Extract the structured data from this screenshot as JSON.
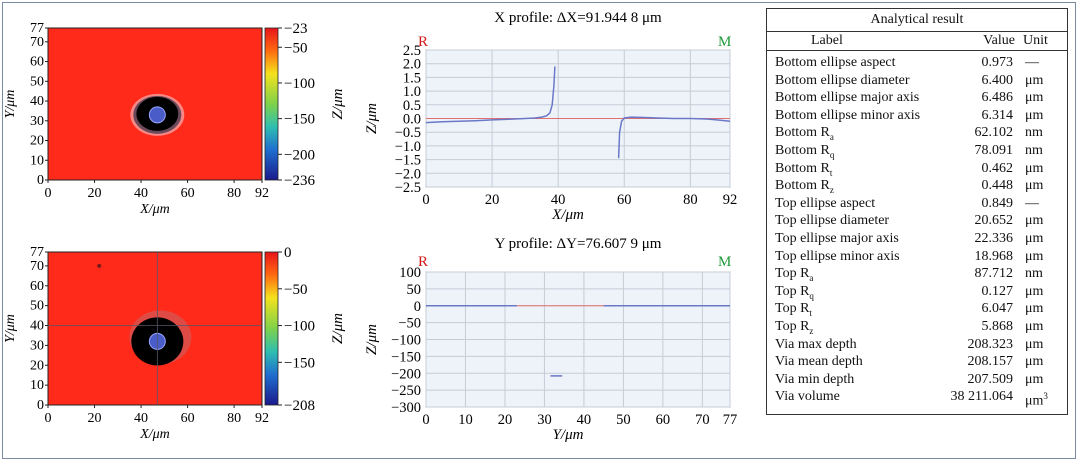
{
  "chart_data": [
    {
      "type": "heatmap",
      "name": "top-map",
      "xlabel": "X/μm",
      "ylabel": "Y/μm",
      "colorbar_label": "Z/μm",
      "x_ticks": [
        0,
        20,
        40,
        60,
        80,
        92
      ],
      "y_ticks": [
        0,
        10,
        20,
        30,
        40,
        50,
        60,
        70,
        77
      ],
      "xlim": [
        0,
        92
      ],
      "ylim": [
        0,
        77
      ],
      "colorbar_ticks": [
        -23,
        -50,
        -100,
        -150,
        -200,
        -236
      ],
      "zlim": [
        -236,
        -23
      ],
      "via_center": [
        47,
        33
      ],
      "colors": {
        "surface": "#ff2a1a",
        "via": "#000000",
        "core": "#4a5cc8"
      }
    },
    {
      "type": "heatmap",
      "name": "bottom-map",
      "xlabel": "X/μm",
      "ylabel": "Y/μm",
      "colorbar_label": "Z/μm",
      "x_ticks": [
        0,
        20,
        40,
        60,
        80,
        92
      ],
      "y_ticks": [
        0,
        10,
        20,
        30,
        40,
        50,
        60,
        70,
        77
      ],
      "xlim": [
        0,
        92
      ],
      "ylim": [
        0,
        77
      ],
      "colorbar_ticks": [
        0,
        -50,
        -100,
        -150,
        -208
      ],
      "zlim": [
        -208,
        0
      ],
      "via_center": [
        47,
        32
      ],
      "crosshair": [
        47,
        40
      ],
      "colors": {
        "surface": "#ff2a1a",
        "via": "#000000",
        "core": "#4a5cc8"
      }
    },
    {
      "type": "line",
      "name": "x-profile",
      "title": "X profile: ΔX=91.944 8 μm",
      "xlabel": "X/μm",
      "ylabel": "Z/μm",
      "corner_left": "R",
      "corner_right": "M",
      "xlim": [
        0,
        92
      ],
      "ylim": [
        -2.5,
        2.5
      ],
      "x_ticks": [
        0,
        20,
        40,
        60,
        80,
        92
      ],
      "y_ticks": [
        2.5,
        2.0,
        1.5,
        1.0,
        0.5,
        0.0,
        -0.5,
        -1.0,
        -1.5,
        -2.0,
        -2.5
      ],
      "y_tick_labels": [
        "2.5",
        "2.0",
        "1.5",
        "1.0",
        "0.5",
        "0.0",
        "−0.5",
        "−1.0",
        "−1.5",
        "−2.0",
        "−2.5"
      ],
      "grid": true,
      "reference_y": 0,
      "series": [
        {
          "x": [
            0,
            5,
            10,
            15,
            20,
            25,
            30,
            33,
            35,
            36.5,
            37.5,
            38.2,
            38.7,
            39
          ],
          "y": [
            -0.15,
            -0.12,
            -0.1,
            -0.08,
            -0.05,
            -0.03,
            0.0,
            0.02,
            0.05,
            0.1,
            0.2,
            0.5,
            1.2,
            1.9
          ]
        },
        {
          "x": [
            58.3,
            58.6,
            59.2,
            60,
            62,
            65,
            70,
            75,
            80,
            85,
            88,
            92
          ],
          "y": [
            -1.45,
            -0.5,
            -0.1,
            0.02,
            0.05,
            0.04,
            0.02,
            0.0,
            0.0,
            -0.02,
            -0.05,
            -0.1
          ]
        }
      ]
    },
    {
      "type": "line",
      "name": "y-profile",
      "title": "Y profile: ΔY=76.607 9 μm",
      "xlabel": "Y/μm",
      "ylabel": "Z/μm",
      "corner_left": "R",
      "corner_right": "M",
      "xlim": [
        0,
        77
      ],
      "ylim": [
        -300,
        100
      ],
      "x_ticks": [
        0,
        10,
        20,
        30,
        40,
        50,
        60,
        70,
        77
      ],
      "y_ticks": [
        100,
        50,
        0,
        -50,
        -100,
        -150,
        -200,
        -250,
        -300
      ],
      "y_tick_labels": [
        "100",
        "50",
        "0",
        "−50",
        "−100",
        "−150",
        "−200",
        "−250",
        "−300"
      ],
      "grid": true,
      "reference_y": 0,
      "series": [
        {
          "x": [
            0,
            5,
            10,
            15,
            20,
            23
          ],
          "y": [
            0,
            0,
            0,
            0,
            0,
            0
          ]
        },
        {
          "x": [
            31.5,
            34.5
          ],
          "y": [
            -208,
            -208
          ]
        },
        {
          "x": [
            45,
            50,
            55,
            60,
            65,
            70,
            77
          ],
          "y": [
            0,
            0,
            0,
            0,
            0,
            0,
            0
          ]
        }
      ]
    }
  ],
  "table": {
    "title": "Analytical result",
    "headers": {
      "label": "Label",
      "value": "Value",
      "unit": "Unit"
    },
    "rows": [
      {
        "label": "Bottom ellipse aspect",
        "value": "0.973",
        "unit": "—"
      },
      {
        "label": "Bottom ellipse diameter",
        "value": "6.400",
        "unit": "μm"
      },
      {
        "label": "Bottom ellipse major axis",
        "value": "6.486",
        "unit": "μm"
      },
      {
        "label": "Bottom ellipse minor axis",
        "value": "6.314",
        "unit": "μm"
      },
      {
        "label": "Bottom R",
        "sub": "a",
        "value": "62.102",
        "unit": "nm"
      },
      {
        "label": "Bottom R",
        "sub": "q",
        "value": "78.091",
        "unit": "nm"
      },
      {
        "label": "Bottom R",
        "sub": "t",
        "value": "0.462",
        "unit": "μm"
      },
      {
        "label": "Bottom R",
        "sub": "z",
        "value": "0.448",
        "unit": "μm"
      },
      {
        "label": "Top ellipse aspect",
        "value": "0.849",
        "unit": "—"
      },
      {
        "label": "Top ellipse diameter",
        "value": "20.652",
        "unit": "μm"
      },
      {
        "label": "Top ellipse major axis",
        "value": "22.336",
        "unit": "μm"
      },
      {
        "label": "Top ellipse minor axis",
        "value": "18.968",
        "unit": "μm"
      },
      {
        "label": "Top R",
        "sub": "a",
        "value": "87.712",
        "unit": "nm"
      },
      {
        "label": "Top R",
        "sub": "q",
        "value": "0.127",
        "unit": "μm"
      },
      {
        "label": "Top R",
        "sub": "t",
        "value": "6.047",
        "unit": "μm"
      },
      {
        "label": "Top R",
        "sub": "z",
        "value": "5.868",
        "unit": "μm"
      },
      {
        "label": "Via max depth",
        "value": "208.323",
        "unit": "μm"
      },
      {
        "label": "Via mean depth",
        "value": "208.157",
        "unit": "μm"
      },
      {
        "label": "Via min depth",
        "value": "207.509",
        "unit": "μm"
      },
      {
        "label": "Via volume",
        "value": "38 211.064",
        "unit": "μm",
        "sup": "3"
      }
    ]
  }
}
